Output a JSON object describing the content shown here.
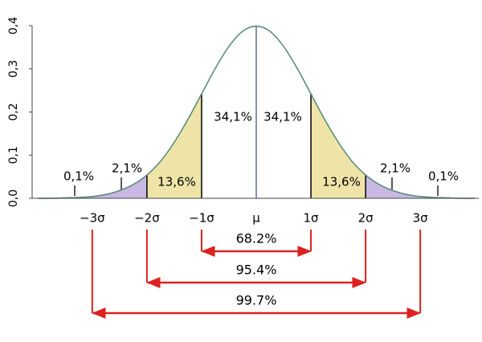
{
  "chart_data": {
    "type": "normal-area",
    "x": [
      -4,
      -3.75,
      -3.5,
      -3.25,
      -3,
      -2.75,
      -2.5,
      -2.25,
      -2,
      -1.75,
      -1.5,
      -1.25,
      -1,
      -0.75,
      -0.5,
      -0.25,
      0,
      0.25,
      0.5,
      0.75,
      1,
      1.25,
      1.5,
      1.75,
      2,
      2.25,
      2.5,
      2.75,
      3,
      3.25,
      3.5,
      3.75,
      4
    ],
    "values": [
      0.0,
      0.0,
      0.001,
      0.002,
      0.004,
      0.009,
      0.018,
      0.032,
      0.054,
      0.086,
      0.13,
      0.183,
      0.242,
      0.301,
      0.352,
      0.387,
      0.399,
      0.387,
      0.352,
      0.301,
      0.242,
      0.183,
      0.13,
      0.086,
      0.054,
      0.032,
      0.018,
      0.009,
      0.004,
      0.002,
      0.001,
      0.0,
      0.0
    ],
    "color": "#5b8c7b",
    "xlim": [
      -4.1,
      4.1
    ],
    "ylim": [
      0,
      0.4
    ],
    "xticks": [
      {
        "value": -3,
        "label": "−3σ"
      },
      {
        "value": -2,
        "label": "−2σ"
      },
      {
        "value": -1,
        "label": "−1σ"
      },
      {
        "value": 0,
        "label": "μ"
      },
      {
        "value": 1,
        "label": "1σ"
      },
      {
        "value": 2,
        "label": "2σ"
      },
      {
        "value": 3,
        "label": "3σ"
      }
    ],
    "yticks": [
      {
        "value": 0,
        "label": "0,0"
      },
      {
        "value": 0.1,
        "label": "0,1"
      },
      {
        "value": 0.2,
        "label": "0,2"
      },
      {
        "value": 0.3,
        "label": "0,3"
      },
      {
        "value": 0.4,
        "label": "0,4"
      }
    ],
    "regions": [
      {
        "from": -4,
        "to": -2,
        "color": "#c8b8e2"
      },
      {
        "from": -2,
        "to": -1,
        "color": "#efe4a8"
      },
      {
        "from": 1,
        "to": 2,
        "color": "#efe4a8"
      },
      {
        "from": 2,
        "to": 4,
        "color": "#c8b8e2"
      }
    ],
    "annotations": [
      "0,1%",
      "2,1%",
      "13,6%",
      "34,1%",
      "34,1%",
      "13,6%",
      "2,1%",
      "0,1%"
    ],
    "ranges": [
      {
        "label": "68.2%",
        "from": -1,
        "to": 1
      },
      {
        "label": "95.4%",
        "from": -2,
        "to": 2
      },
      {
        "label": "99.7%",
        "from": -3,
        "to": 3
      }
    ],
    "range_color": "#dd2222"
  }
}
